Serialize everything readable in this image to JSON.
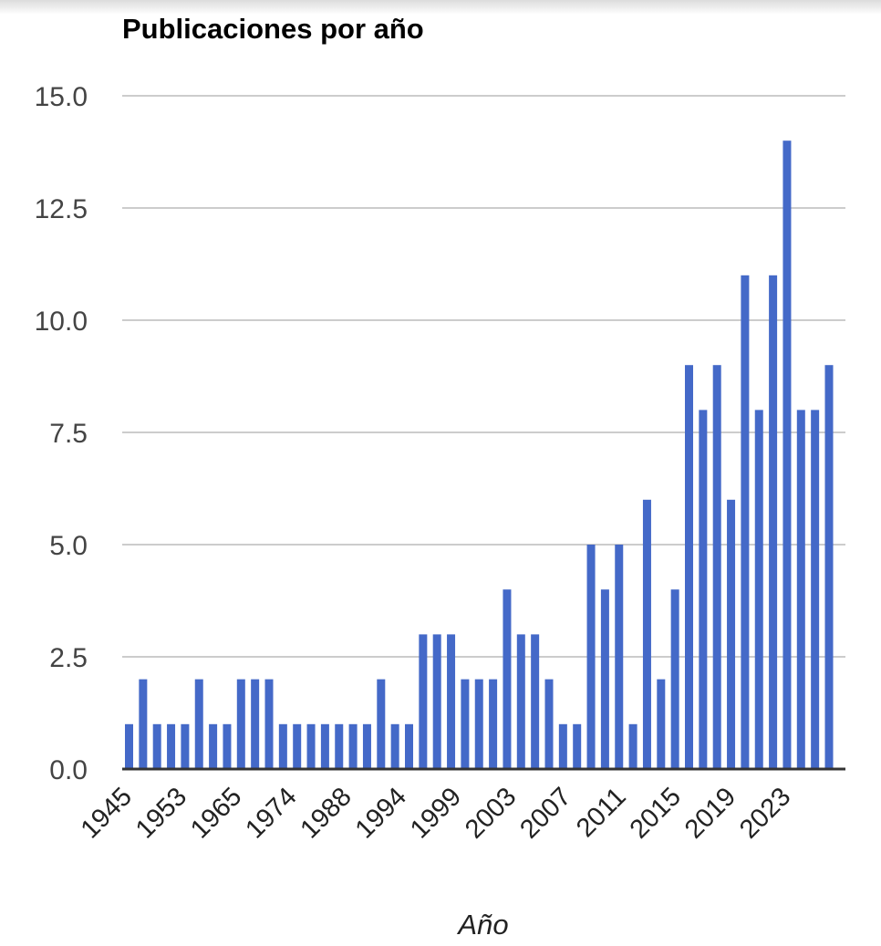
{
  "chart_data": {
    "type": "bar",
    "title": "Publicaciones por año",
    "xlabel": "Año",
    "ylabel": "",
    "ylim": [
      0,
      15
    ],
    "yticks": [
      "0.0",
      "2.5",
      "5.0",
      "7.5",
      "10.0",
      "12.5",
      "15.0"
    ],
    "xtick_labels": [
      "1945",
      "1953",
      "1965",
      "1974",
      "1988",
      "1994",
      "1999",
      "2003",
      "2007",
      "2011",
      "2015",
      "2019",
      "2023"
    ],
    "grid": true,
    "bar_color": "#4469c8",
    "values": [
      1,
      2,
      1,
      1,
      1,
      2,
      1,
      1,
      2,
      2,
      2,
      1,
      1,
      1,
      1,
      1,
      1,
      1,
      2,
      1,
      1,
      3,
      3,
      3,
      2,
      2,
      2,
      4,
      3,
      3,
      2,
      1,
      1,
      5,
      4,
      5,
      1,
      6,
      2,
      4,
      9,
      8,
      9,
      6,
      11,
      8,
      11,
      14,
      8,
      8,
      9
    ]
  }
}
